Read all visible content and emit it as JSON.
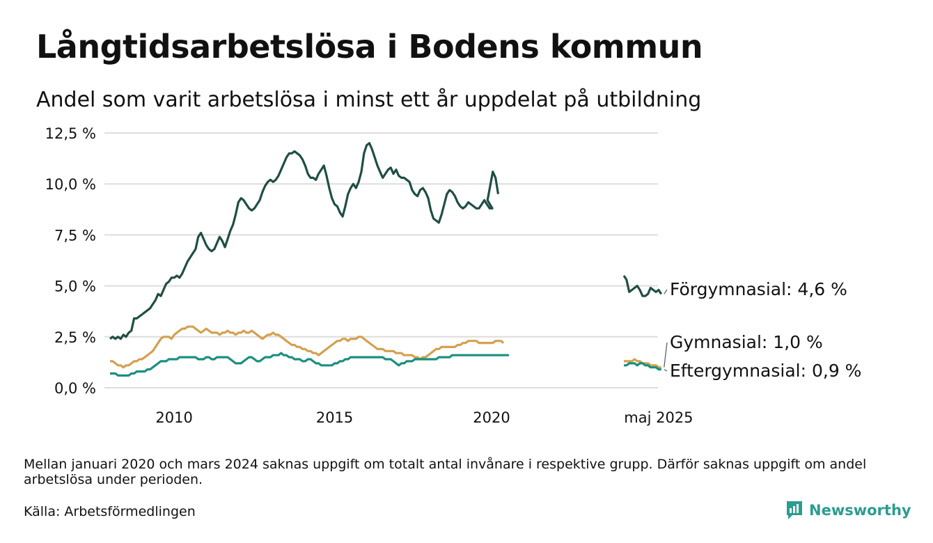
{
  "title": "Långtidsarbetslösa i Bodens kommun",
  "subtitle": "Andel som varit arbetslösa i minst ett år uppdelat på utbildning",
  "note": "Mellan januari 2020 och mars 2024 saknas uppgift om totalt antal invånare i respektive grupp. Därför saknas uppgift om andel arbetslösa under perioden.",
  "source": "Källa: Arbetsförmedlingen",
  "brand": {
    "name": "Newsworthy",
    "color": "#2a9d8f",
    "icon": "bar-chart-icon"
  },
  "chart_data": {
    "type": "line",
    "y_ticks": [
      "0,0 %",
      "2,5 %",
      "5,0 %",
      "7,5 %",
      "10,0 %",
      "12,5 %"
    ],
    "y_tick_values": [
      0,
      2.5,
      5,
      7.5,
      10,
      12.5
    ],
    "x_ticks": [
      "2010",
      "2015",
      "2020",
      "maj 2025"
    ],
    "ylim": [
      0,
      12.5
    ],
    "grid": true,
    "x_scale": "months from 2008-01 (gap Jan 2020 – Mar 2024 collapsed on display)",
    "series": [
      {
        "name": "Förgymnasial",
        "end_label": "Förgymnasial: 4,6 %",
        "color": "#1f4e45",
        "segments": [
          {
            "start": "2008-01",
            "values": [
              2.4,
              2.5,
              2.4,
              2.5,
              2.4,
              2.6,
              2.5,
              2.7,
              2.8,
              3.4,
              3.4,
              3.5,
              3.6,
              3.7,
              3.8,
              3.9,
              4.1,
              4.3,
              4.6,
              4.5,
              4.8,
              5.1,
              5.2,
              5.4,
              5.4,
              5.5,
              5.4,
              5.6,
              5.9,
              6.2,
              6.4,
              6.6,
              6.8,
              7.4,
              7.6,
              7.3,
              7.0,
              6.8,
              6.7,
              6.8,
              7.1,
              7.4,
              7.2,
              6.9,
              7.3,
              7.7,
              8.0,
              8.5,
              9.1,
              9.3,
              9.2,
              9.0,
              8.8,
              8.7,
              8.8,
              9.0,
              9.2,
              9.6,
              9.9,
              10.1,
              10.2,
              10.1,
              10.2,
              10.4,
              10.7,
              11.0,
              11.3,
              11.5,
              11.5,
              11.6,
              11.5,
              11.4,
              11.2,
              10.9,
              10.5,
              10.3,
              10.3,
              10.2,
              10.5,
              10.7,
              10.9,
              10.4,
              9.8,
              9.3,
              9.0,
              8.9,
              8.6,
              8.4,
              8.9,
              9.5,
              9.8,
              10.0,
              9.8,
              10.1,
              10.6,
              11.5,
              11.9,
              12.0,
              11.7,
              11.3,
              10.9,
              10.6,
              10.3,
              10.5,
              10.7,
              10.8,
              10.5,
              10.7,
              10.4,
              10.3,
              10.3,
              10.2,
              10.1,
              9.7,
              9.5,
              9.4,
              9.7,
              9.8,
              9.6,
              9.3,
              8.7,
              8.3,
              8.2,
              8.1,
              8.5,
              9.0,
              9.5,
              9.7,
              9.6,
              9.4,
              9.1,
              8.9,
              8.8,
              8.9,
              9.1,
              9.0,
              8.9,
              8.8,
              8.8,
              9.0,
              9.2,
              9.0,
              8.8,
              8.8,
              9.2,
              9.9,
              10.6,
              10.3,
              9.5
            ]
          },
          {
            "start": "2024-04",
            "values": [
              5.5,
              5.3,
              4.7,
              4.8,
              4.9,
              5.0,
              4.8,
              4.5,
              4.5,
              4.6,
              4.9,
              4.8,
              4.7,
              4.8,
              4.6
            ]
          }
        ]
      },
      {
        "name": "Gymnasial",
        "end_label": "Gymnasial: 1,0 %",
        "color": "#d4a04e",
        "segments": [
          {
            "start": "2008-01",
            "values": [
              1.3,
              1.3,
              1.2,
              1.1,
              1.1,
              1.0,
              1.1,
              1.1,
              1.2,
              1.3,
              1.3,
              1.4,
              1.4,
              1.5,
              1.6,
              1.7,
              1.8,
              2.0,
              2.2,
              2.4,
              2.5,
              2.5,
              2.5,
              2.4,
              2.6,
              2.7,
              2.8,
              2.9,
              2.9,
              3.0,
              3.0,
              3.0,
              2.9,
              2.8,
              2.7,
              2.8,
              2.9,
              2.8,
              2.7,
              2.7,
              2.7,
              2.6,
              2.7,
              2.7,
              2.8,
              2.7,
              2.7,
              2.6,
              2.7,
              2.7,
              2.8,
              2.7,
              2.7,
              2.8,
              2.7,
              2.6,
              2.5,
              2.4,
              2.5,
              2.6,
              2.6,
              2.7,
              2.6,
              2.6,
              2.5,
              2.4,
              2.3,
              2.2,
              2.1,
              2.1,
              2.0,
              2.0,
              1.9,
              1.9,
              1.8,
              1.8,
              1.7,
              1.7,
              1.6,
              1.7,
              1.8,
              1.9,
              2.0,
              2.1,
              2.2,
              2.3,
              2.3,
              2.4,
              2.4,
              2.3,
              2.4,
              2.4,
              2.4,
              2.5,
              2.5,
              2.4,
              2.3,
              2.2,
              2.1,
              2.0,
              1.9,
              1.9,
              1.9,
              1.8,
              1.8,
              1.8,
              1.8,
              1.7,
              1.7,
              1.7,
              1.6,
              1.6,
              1.6,
              1.6,
              1.5,
              1.5,
              1.4,
              1.5,
              1.5,
              1.6,
              1.7,
              1.8,
              1.9,
              1.9,
              2.0,
              2.0,
              2.0,
              2.0,
              2.0,
              2.0,
              2.1,
              2.1,
              2.2,
              2.2,
              2.3,
              2.3,
              2.3,
              2.3,
              2.2,
              2.2,
              2.2,
              2.2,
              2.2,
              2.2,
              2.2,
              2.2,
              2.2,
              2.3,
              2.3,
              2.3,
              2.2
            ]
          },
          {
            "start": "2024-04",
            "values": [
              1.3,
              1.3,
              1.3,
              1.3,
              1.4,
              1.3,
              1.3,
              1.2,
              1.2,
              1.2,
              1.1,
              1.1,
              1.1,
              1.0,
              1.0
            ]
          }
        ]
      },
      {
        "name": "Eftergymnasial",
        "end_label": "Eftergymnasial: 0,9 %",
        "color": "#1a8f80",
        "segments": [
          {
            "start": "2008-01",
            "values": [
              0.7,
              0.7,
              0.7,
              0.6,
              0.6,
              0.6,
              0.6,
              0.6,
              0.7,
              0.7,
              0.8,
              0.8,
              0.8,
              0.8,
              0.9,
              0.9,
              1.0,
              1.1,
              1.2,
              1.3,
              1.3,
              1.3,
              1.4,
              1.4,
              1.4,
              1.4,
              1.5,
              1.5,
              1.5,
              1.5,
              1.5,
              1.5,
              1.5,
              1.4,
              1.4,
              1.4,
              1.5,
              1.5,
              1.4,
              1.4,
              1.5,
              1.5,
              1.5,
              1.5,
              1.5,
              1.4,
              1.3,
              1.2,
              1.2,
              1.2,
              1.3,
              1.4,
              1.5,
              1.5,
              1.4,
              1.3,
              1.3,
              1.4,
              1.5,
              1.5,
              1.5,
              1.6,
              1.6,
              1.6,
              1.7,
              1.6,
              1.6,
              1.5,
              1.5,
              1.4,
              1.4,
              1.4,
              1.3,
              1.3,
              1.4,
              1.4,
              1.3,
              1.2,
              1.2,
              1.1,
              1.1,
              1.1,
              1.1,
              1.1,
              1.2,
              1.2,
              1.3,
              1.3,
              1.4,
              1.4,
              1.5,
              1.5,
              1.5,
              1.5,
              1.5,
              1.5,
              1.5,
              1.5,
              1.5,
              1.5,
              1.5,
              1.5,
              1.5,
              1.4,
              1.4,
              1.4,
              1.3,
              1.2,
              1.1,
              1.2,
              1.2,
              1.3,
              1.3,
              1.3,
              1.4,
              1.4,
              1.4,
              1.4,
              1.4,
              1.4,
              1.4,
              1.4,
              1.4,
              1.5,
              1.5,
              1.5,
              1.5,
              1.5,
              1.6,
              1.6,
              1.6,
              1.6,
              1.6,
              1.6,
              1.6,
              1.6,
              1.6,
              1.6,
              1.6,
              1.6,
              1.6,
              1.6,
              1.6,
              1.6,
              1.6,
              1.6,
              1.6,
              1.6,
              1.6,
              1.6,
              1.6,
              1.6,
              1.6
            ]
          },
          {
            "start": "2024-04",
            "values": [
              1.1,
              1.1,
              1.2,
              1.2,
              1.2,
              1.1,
              1.2,
              1.2,
              1.1,
              1.1,
              1.0,
              1.0,
              1.0,
              0.9,
              0.9
            ]
          }
        ]
      }
    ]
  }
}
